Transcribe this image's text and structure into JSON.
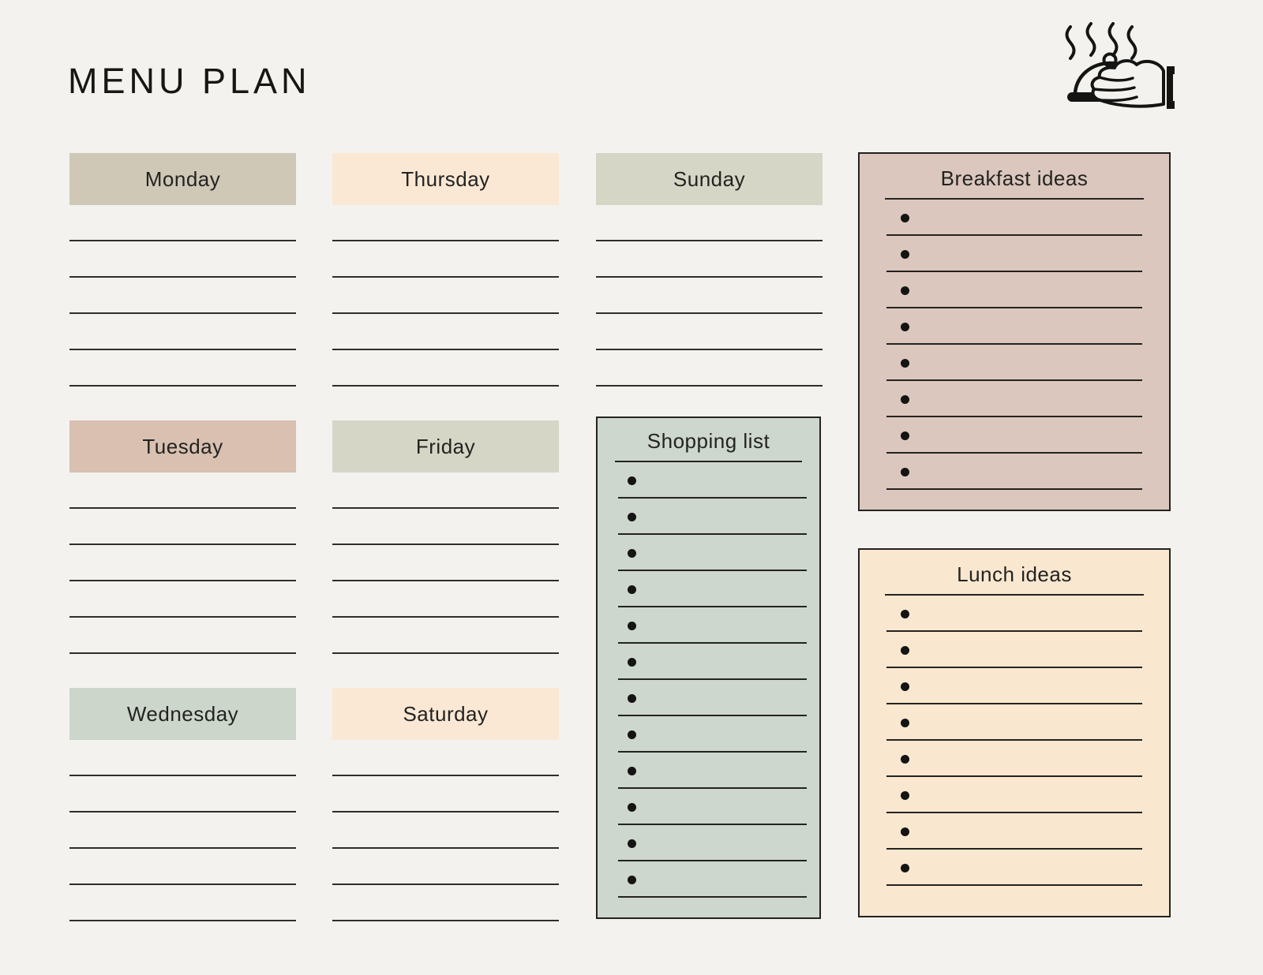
{
  "page": {
    "title": "MENU PLAN"
  },
  "theme": {
    "background": "#f3f2ef",
    "ink": "#232320",
    "rule_line": "#2e2e2b"
  },
  "icon": {
    "name": "serving-dish-with-steam-icon"
  },
  "days": [
    {
      "id": "monday",
      "label": "Monday",
      "header_color": "#cfc8b7",
      "lines": 5
    },
    {
      "id": "tuesday",
      "label": "Tuesday",
      "header_color": "#d9c0b1",
      "lines": 5
    },
    {
      "id": "wednesday",
      "label": "Wednesday",
      "header_color": "#ccd6cb",
      "lines": 5
    },
    {
      "id": "thursday",
      "label": "Thursday",
      "header_color": "#fae8d5",
      "lines": 5
    },
    {
      "id": "friday",
      "label": "Friday",
      "header_color": "#d6d6c6",
      "lines": 5
    },
    {
      "id": "saturday",
      "label": "Saturday",
      "header_color": "#fae8d5",
      "lines": 5
    },
    {
      "id": "sunday",
      "label": "Sunday",
      "header_color": "#d6d6c6",
      "lines": 5
    }
  ],
  "panels": {
    "shopping": {
      "title": "Shopping list",
      "bg": "#cdd7cd",
      "items": 12
    },
    "breakfast": {
      "title": "Breakfast ideas",
      "bg": "#dbc7bd",
      "items": 8
    },
    "lunch": {
      "title": "Lunch ideas",
      "bg": "#f9e7d0",
      "items": 8
    }
  }
}
